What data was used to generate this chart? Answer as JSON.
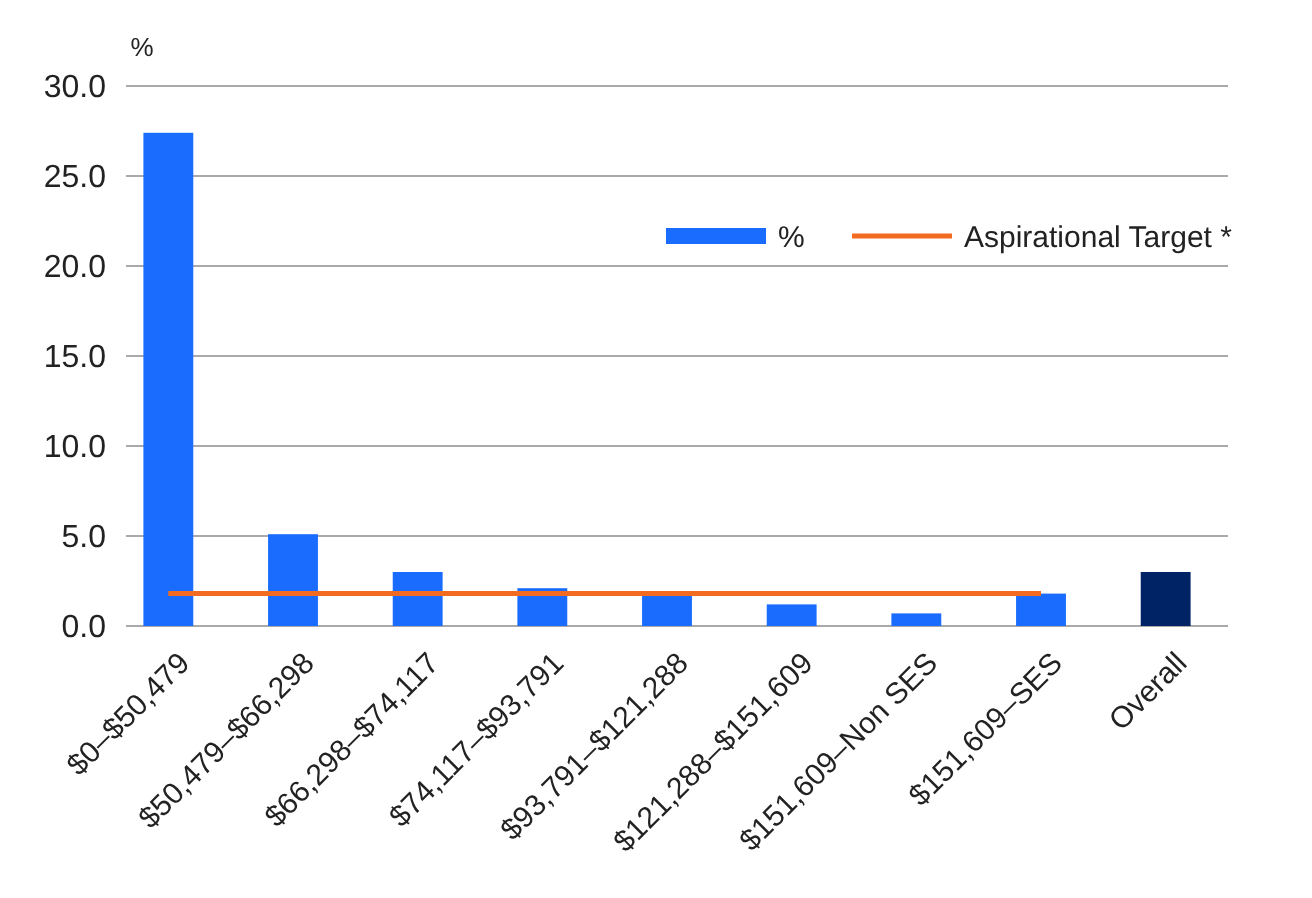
{
  "chart_data": {
    "type": "bar",
    "ylabel": "%",
    "categories": [
      "$0–$50,479",
      "$50,479–$66,298",
      "$66,298–$74,117",
      "$74,117–$93,791",
      "$93,791–$121,288",
      "$121,288–$151,609",
      "$151,609–Non SES",
      "$151,609–SES",
      "Overall"
    ],
    "series": [
      {
        "name": "%",
        "color": "#1a6cff",
        "colors": [
          "#1a6cff",
          "#1a6cff",
          "#1a6cff",
          "#1a6cff",
          "#1a6cff",
          "#1a6cff",
          "#1a6cff",
          "#1a6cff",
          "#002366"
        ],
        "values": [
          27.4,
          5.1,
          3.0,
          2.1,
          1.8,
          1.2,
          0.7,
          1.8,
          3.0
        ]
      },
      {
        "name": "Aspirational Target *",
        "type": "line",
        "color": "#f26b21",
        "values": [
          1.8,
          1.8,
          1.8,
          1.8,
          1.8,
          1.8,
          1.8,
          1.8,
          null
        ]
      }
    ],
    "ylim": [
      0,
      30
    ],
    "yticks": [
      {
        "value": 0,
        "label": "0.0"
      },
      {
        "value": 5,
        "label": "5.0"
      },
      {
        "value": 10,
        "label": "10.0"
      },
      {
        "value": 15,
        "label": "15.0"
      },
      {
        "value": 20,
        "label": "20.0"
      },
      {
        "value": 25,
        "label": "25.0"
      },
      {
        "value": 30,
        "label": "30.0"
      }
    ],
    "grid": "y",
    "legend": "top right",
    "marker": "none",
    "line_style": "solid"
  }
}
